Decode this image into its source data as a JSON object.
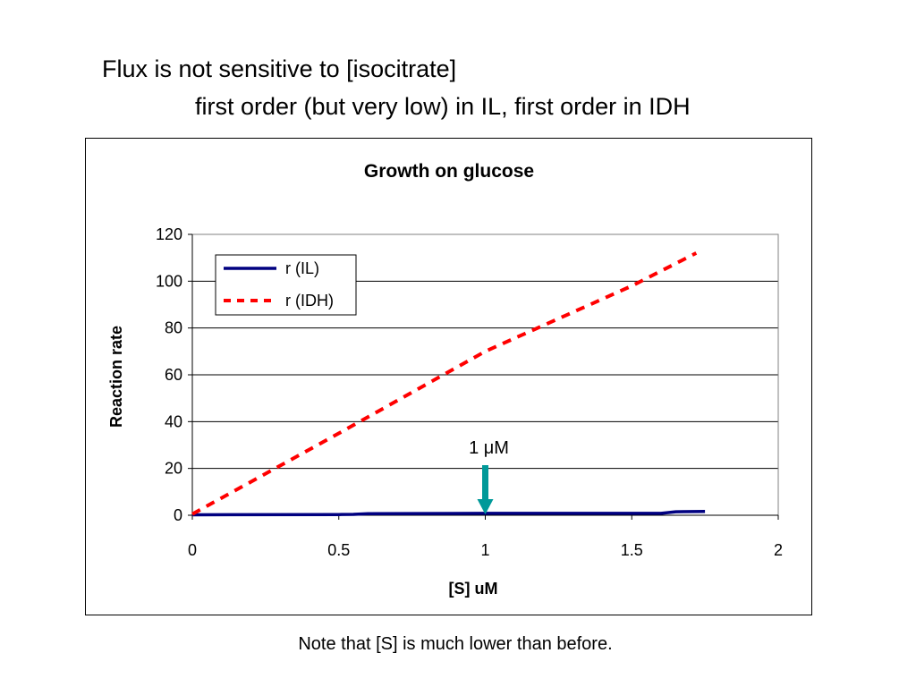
{
  "slide": {
    "title_line1": "Flux is not sensitive to [isocitrate]",
    "title_line2": "first order (but very low) in IL, first order in IDH",
    "note": "Note that [S] is much lower than before."
  },
  "chart_data": {
    "type": "line",
    "title": "Growth on glucose",
    "xlabel": "[S] uM",
    "ylabel": "Reaction rate",
    "xlim": [
      0,
      2
    ],
    "ylim": [
      0,
      120
    ],
    "xticks": [
      0,
      0.5,
      1,
      1.5,
      2
    ],
    "xtick_labels": [
      "0",
      "0.5",
      "1",
      "1.5",
      "2"
    ],
    "yticks": [
      0,
      20,
      40,
      60,
      80,
      100,
      120
    ],
    "ytick_labels": [
      "0",
      "20",
      "40",
      "60",
      "80",
      "100",
      "120"
    ],
    "grid": "horizontal",
    "legend_position": "top-left",
    "series": [
      {
        "name": "r (IL)",
        "style": "solid",
        "color": "#000080",
        "x": [
          0,
          0.5,
          0.55,
          0.6,
          1.0,
          1.55,
          1.6,
          1.65,
          1.75
        ],
        "y": [
          0.2,
          0.3,
          0.4,
          0.7,
          0.8,
          0.8,
          0.8,
          1.5,
          1.6
        ]
      },
      {
        "name": "r (IDH)",
        "style": "dashed",
        "color": "#ff0000",
        "x": [
          0,
          0.5,
          1.0,
          1.5,
          1.72
        ],
        "y": [
          0.5,
          35,
          70,
          98,
          112
        ]
      }
    ],
    "annotations": [
      {
        "text": "1 μM",
        "x": 1.0,
        "y": 0,
        "type": "arrow-down",
        "color": "#009999"
      }
    ]
  }
}
